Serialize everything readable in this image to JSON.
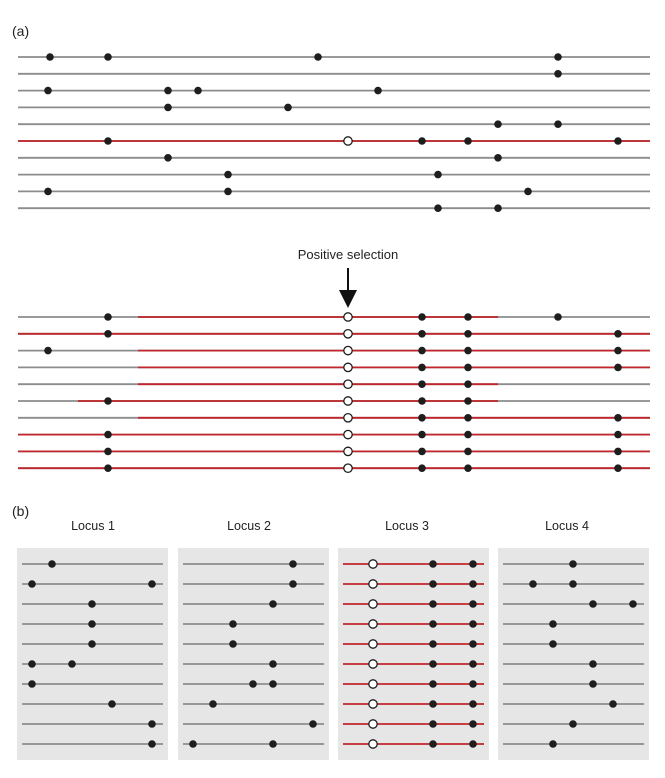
{
  "panel_a": {
    "label": "(a)",
    "annotation": "Positive selection",
    "top_haplotypes": [
      {
        "color": "gray",
        "red_segment": null,
        "snps": [
          {
            "pos": 50
          },
          {
            "pos": 108
          },
          {
            "pos": 318
          },
          {
            "pos": 558
          }
        ]
      },
      {
        "color": "gray",
        "red_segment": null,
        "snps": [
          {
            "pos": 558
          }
        ]
      },
      {
        "color": "gray",
        "red_segment": null,
        "snps": [
          {
            "pos": 48
          },
          {
            "pos": 168
          },
          {
            "pos": 198
          },
          {
            "pos": 378
          }
        ]
      },
      {
        "color": "gray",
        "red_segment": null,
        "snps": [
          {
            "pos": 168
          },
          {
            "pos": 288
          }
        ]
      },
      {
        "color": "gray",
        "red_segment": null,
        "snps": [
          {
            "pos": 498
          },
          {
            "pos": 558
          }
        ]
      },
      {
        "color": "red",
        "red_segment": [
          18,
          650
        ],
        "snps": [
          {
            "pos": 108
          },
          {
            "pos": 348,
            "open": true
          },
          {
            "pos": 422
          },
          {
            "pos": 468
          },
          {
            "pos": 618
          }
        ]
      },
      {
        "color": "gray",
        "red_segment": null,
        "snps": [
          {
            "pos": 168
          },
          {
            "pos": 498
          }
        ]
      },
      {
        "color": "gray",
        "red_segment": null,
        "snps": [
          {
            "pos": 228
          },
          {
            "pos": 438
          }
        ]
      },
      {
        "color": "gray",
        "red_segment": null,
        "snps": [
          {
            "pos": 48
          },
          {
            "pos": 228
          },
          {
            "pos": 528
          }
        ]
      },
      {
        "color": "gray",
        "red_segment": null,
        "snps": [
          {
            "pos": 438
          },
          {
            "pos": 498
          }
        ]
      }
    ],
    "bottom_haplotypes": [
      {
        "red_segment": [
          138,
          498
        ],
        "snps": [
          {
            "pos": 108
          },
          {
            "pos": 348,
            "open": true
          },
          {
            "pos": 422
          },
          {
            "pos": 468
          },
          {
            "pos": 558
          }
        ]
      },
      {
        "red_segment": [
          18,
          650
        ],
        "snps": [
          {
            "pos": 108
          },
          {
            "pos": 348,
            "open": true
          },
          {
            "pos": 422
          },
          {
            "pos": 468
          },
          {
            "pos": 618
          }
        ]
      },
      {
        "red_segment": [
          138,
          650
        ],
        "snps": [
          {
            "pos": 48
          },
          {
            "pos": 348,
            "open": true
          },
          {
            "pos": 422
          },
          {
            "pos": 468
          },
          {
            "pos": 618
          }
        ]
      },
      {
        "red_segment": [
          138,
          650
        ],
        "snps": [
          {
            "pos": 348,
            "open": true
          },
          {
            "pos": 422
          },
          {
            "pos": 468
          },
          {
            "pos": 618
          }
        ]
      },
      {
        "red_segment": [
          138,
          498
        ],
        "snps": [
          {
            "pos": 348,
            "open": true
          },
          {
            "pos": 422
          },
          {
            "pos": 468
          }
        ]
      },
      {
        "red_segment": [
          78,
          498
        ],
        "snps": [
          {
            "pos": 108
          },
          {
            "pos": 348,
            "open": true
          },
          {
            "pos": 422
          },
          {
            "pos": 468
          }
        ]
      },
      {
        "red_segment": [
          138,
          650
        ],
        "snps": [
          {
            "pos": 348,
            "open": true
          },
          {
            "pos": 422
          },
          {
            "pos": 468
          },
          {
            "pos": 618
          }
        ]
      },
      {
        "red_segment": [
          18,
          650
        ],
        "snps": [
          {
            "pos": 108
          },
          {
            "pos": 348,
            "open": true
          },
          {
            "pos": 422
          },
          {
            "pos": 468
          },
          {
            "pos": 618
          }
        ]
      },
      {
        "red_segment": [
          18,
          650
        ],
        "snps": [
          {
            "pos": 108
          },
          {
            "pos": 348,
            "open": true
          },
          {
            "pos": 422
          },
          {
            "pos": 468
          },
          {
            "pos": 618
          }
        ]
      },
      {
        "red_segment": [
          18,
          650
        ],
        "snps": [
          {
            "pos": 108
          },
          {
            "pos": 348,
            "open": true
          },
          {
            "pos": 422
          },
          {
            "pos": 468
          },
          {
            "pos": 618
          }
        ]
      }
    ]
  },
  "panel_b": {
    "label": "(b)",
    "loci": [
      {
        "title": "Locus 1",
        "color": "gray",
        "rows": [
          [
            35
          ],
          [
            15,
            135
          ],
          [
            75
          ],
          [
            75
          ],
          [
            75
          ],
          [
            15,
            55
          ],
          [
            15
          ],
          [
            95
          ],
          [
            135
          ],
          [
            135
          ]
        ]
      },
      {
        "title": "Locus 2",
        "color": "gray",
        "rows": [
          [
            115
          ],
          [
            115
          ],
          [
            95
          ],
          [
            55
          ],
          [
            55
          ],
          [
            95
          ],
          [
            75,
            95
          ],
          [
            35
          ],
          [
            135
          ],
          [
            15,
            95
          ]
        ]
      },
      {
        "title": "Locus 3",
        "color": "red",
        "open_pos": 35,
        "rows": [
          [
            95,
            135
          ],
          [
            95,
            135
          ],
          [
            95,
            135
          ],
          [
            95,
            135
          ],
          [
            95,
            135
          ],
          [
            95,
            135
          ],
          [
            95,
            135
          ],
          [
            95,
            135
          ],
          [
            95,
            135
          ],
          [
            95,
            135
          ]
        ]
      },
      {
        "title": "Locus 4",
        "color": "gray",
        "rows": [
          [
            75
          ],
          [
            35,
            75
          ],
          [
            95,
            135
          ],
          [
            55
          ],
          [
            55
          ],
          [
            95
          ],
          [
            95
          ],
          [
            115
          ],
          [
            75
          ],
          [
            55
          ]
        ]
      }
    ]
  },
  "colors": {
    "gray_line": "#8c8c8c",
    "red_line": "#c0262b",
    "snp_fill": "#1e1e1e",
    "open_snp_fill": "#ffffff",
    "locus_background": "#e6e6e7"
  }
}
